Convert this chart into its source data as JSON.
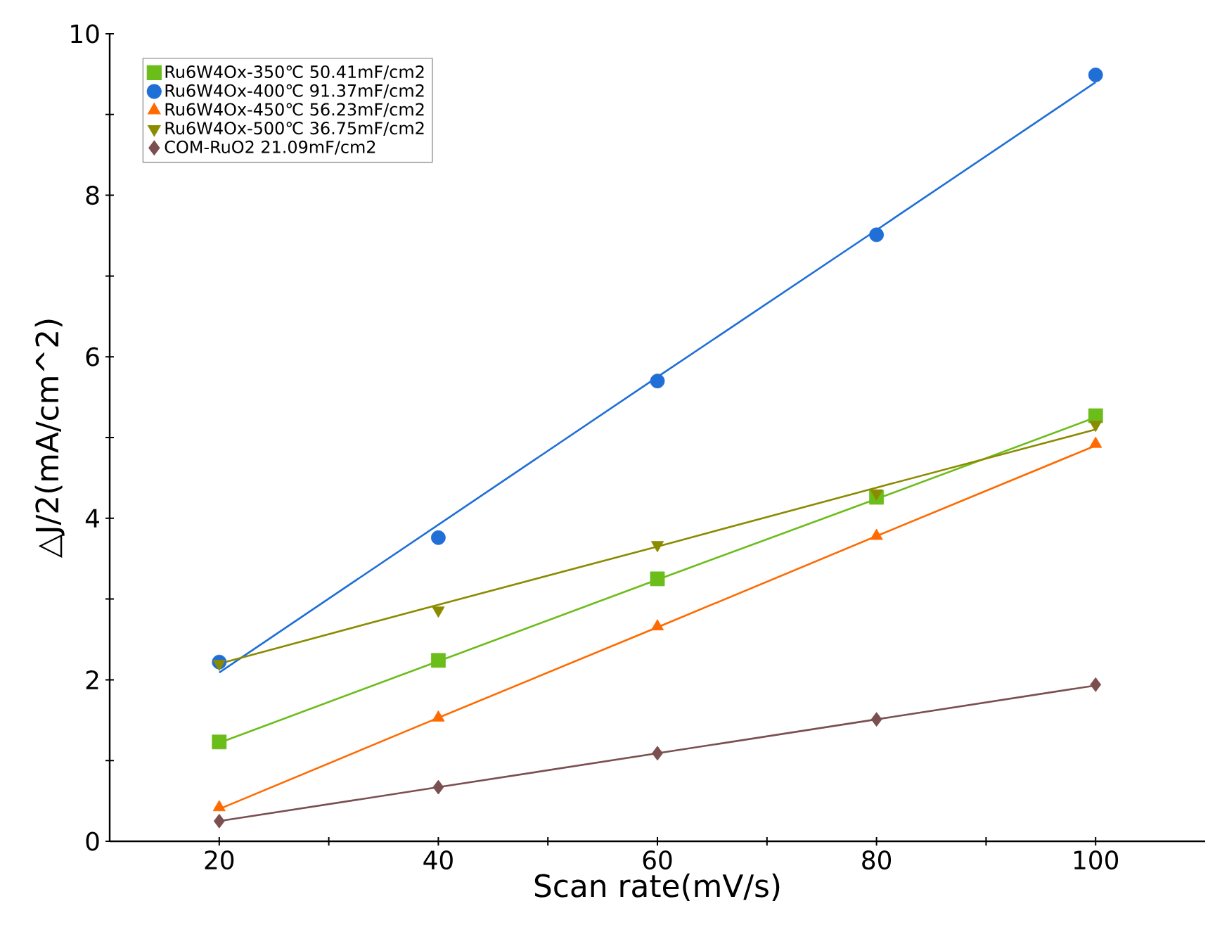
{
  "chart_data": {
    "type": "scatter",
    "xlabel": "Scan rate(mV/s)",
    "ylabel": "△J/2(mA/cm^2)",
    "xlim": [
      10,
      110
    ],
    "ylim": [
      0,
      10
    ],
    "xticks": [
      20,
      {
        "value": 30,
        "label": null
      },
      40,
      {
        "value": 50,
        "label": null
      },
      60,
      {
        "value": 70,
        "label": null
      },
      80,
      {
        "value": 90,
        "label": null
      },
      100
    ],
    "yticks": [
      0,
      {
        "value": 1,
        "label": null
      },
      2,
      {
        "value": 3,
        "label": null
      },
      4,
      {
        "value": 5,
        "label": null
      },
      6,
      {
        "value": 7,
        "label": null
      },
      8,
      {
        "value": 9,
        "label": null
      },
      10
    ],
    "grid": false,
    "legend": "top left",
    "x": [
      20,
      40,
      60,
      80,
      100
    ],
    "series": [
      {
        "name": "Ru6W4Ox-350℃ 50.41mF/cm2",
        "marker": "square",
        "color": "#6bbd1a",
        "values": [
          1.23,
          2.24,
          3.25,
          4.26,
          5.27
        ]
      },
      {
        "name": "Ru6W4Ox-400℃ 91.37mF/cm2",
        "marker": "circle",
        "color": "#1f6fd6",
        "values": [
          2.22,
          3.76,
          5.7,
          7.51,
          9.49
        ]
      },
      {
        "name": "Ru6W4Ox-450℃ 56.23mF/cm2",
        "marker": "triangle",
        "color": "#ff6a00",
        "values": [
          0.42,
          1.53,
          2.66,
          3.78,
          4.92
        ]
      },
      {
        "name": "Ru6W4Ox-500℃ 36.75mF/cm2",
        "marker": "triangle-down",
        "color": "#8b8b00",
        "values": [
          2.2,
          2.86,
          3.67,
          4.31,
          5.16
        ]
      },
      {
        "name": "COM-RuO2 21.09mF/cm2",
        "marker": "diamond",
        "color": "#7b4f4f",
        "values": [
          0.25,
          0.67,
          1.09,
          1.51,
          1.94
        ]
      },
      {
        "type": "line",
        "color": "#6bbd1a",
        "values": [
          1.22,
          2.23,
          3.24,
          4.24,
          5.25
        ]
      },
      {
        "type": "line",
        "color": "#1f6fd6",
        "values": [
          2.09,
          3.92,
          5.75,
          7.57,
          9.4
        ]
      },
      {
        "type": "line",
        "color": "#ff6a00",
        "values": [
          0.4,
          1.53,
          2.65,
          3.78,
          4.9
        ]
      },
      {
        "type": "line",
        "color": "#8b8b00",
        "values": [
          2.2,
          2.93,
          3.65,
          4.38,
          5.1
        ]
      },
      {
        "type": "line",
        "color": "#7b4f4f",
        "values": [
          0.25,
          0.67,
          1.09,
          1.51,
          1.93
        ]
      }
    ]
  }
}
